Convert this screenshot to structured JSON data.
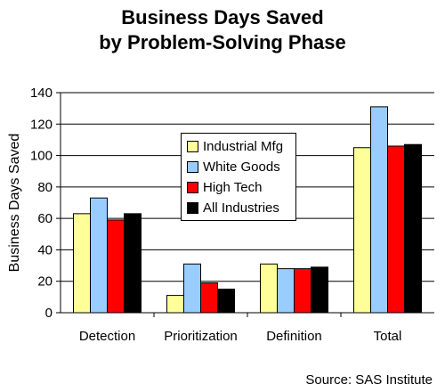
{
  "chart_data": {
    "type": "bar",
    "title_lines": [
      "Business Days Saved",
      "by Problem-Solving Phase"
    ],
    "ylabel": "Business Days Saved",
    "xlabel": "",
    "categories": [
      "Detection",
      "Prioritization",
      "Definition",
      "Total"
    ],
    "ylim": [
      0,
      140
    ],
    "yticks": [
      0,
      20,
      40,
      60,
      80,
      100,
      120,
      140
    ],
    "grid": true,
    "legend_position": "center",
    "series": [
      {
        "name": "Industrial Mfg",
        "color": "#ffff99",
        "values": [
          63,
          11,
          31,
          105
        ]
      },
      {
        "name": "White Goods",
        "color": "#99ccff",
        "values": [
          73,
          31,
          28,
          131
        ]
      },
      {
        "name": "High Tech",
        "color": "#ff0000",
        "values": [
          59,
          19,
          28,
          106
        ]
      },
      {
        "name": "All Industries",
        "color": "#000000",
        "values": [
          63,
          15,
          29,
          107
        ]
      }
    ],
    "source": "Source: SAS Institute"
  }
}
